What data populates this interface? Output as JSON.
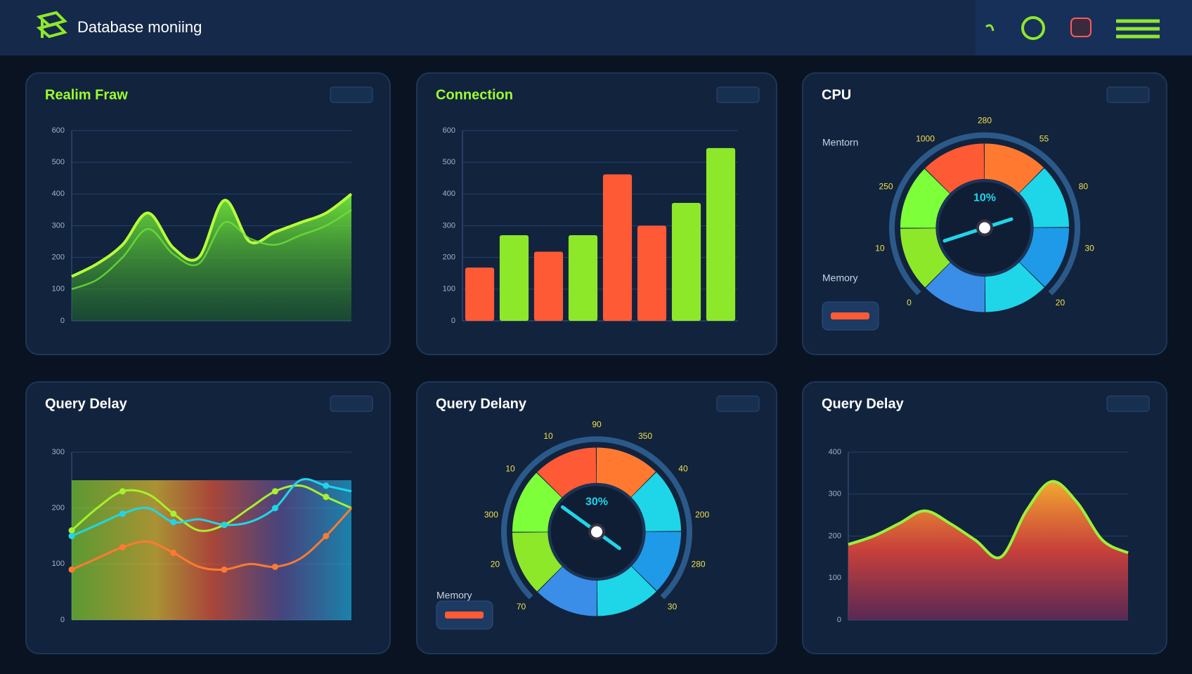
{
  "header": {
    "title": "Database moniing"
  },
  "chart_data": [
    {
      "type": "area",
      "title": "Realim Fraw",
      "ylim": [
        0,
        600
      ],
      "yticks": [
        0,
        100,
        200,
        300,
        400,
        500,
        600
      ],
      "grid": true,
      "series": [
        {
          "color": "#b6ff3a",
          "values": [
            140,
            180,
            240,
            340,
            230,
            200,
            380,
            250,
            280,
            310,
            340,
            400
          ]
        },
        {
          "color": "#6fe23a",
          "values": [
            100,
            130,
            200,
            290,
            210,
            180,
            310,
            260,
            240,
            270,
            300,
            350
          ]
        }
      ]
    },
    {
      "type": "bar",
      "title": "Connection",
      "ylim": [
        0,
        600
      ],
      "yticks": [
        0,
        100,
        200,
        300,
        400,
        500,
        600
      ],
      "grid": true,
      "values": [
        168,
        270,
        218,
        270,
        462,
        300,
        372,
        545
      ],
      "colors": [
        "#ff5a36",
        "#8ee82a",
        "#ff5a36",
        "#8ee82a",
        "#ff5a36",
        "#ff5a36",
        "#8ee82a",
        "#8ee82a"
      ]
    },
    {
      "type": "gauge",
      "title": "CPU",
      "value": 10,
      "value_label": "10%",
      "dial_labels": [
        "0",
        "10",
        "250",
        "1000",
        "280",
        "55",
        "80",
        "30",
        "20"
      ],
      "annotations": [
        "Mentorn",
        "Memory"
      ]
    },
    {
      "type": "line",
      "title": "Query Delay",
      "ylim": [
        0,
        300
      ],
      "yticks": [
        0,
        100,
        200,
        300
      ],
      "grid": true,
      "series": [
        {
          "color": "#a6f02e",
          "values": [
            160,
            200,
            230,
            225,
            190,
            160,
            170,
            200,
            230,
            240,
            220,
            200
          ]
        },
        {
          "color": "#1fd6e8",
          "values": [
            150,
            170,
            190,
            200,
            175,
            180,
            170,
            175,
            200,
            250,
            240,
            230
          ]
        },
        {
          "color": "#ff7a30",
          "values": [
            90,
            110,
            130,
            140,
            120,
            95,
            90,
            100,
            95,
            110,
            150,
            200
          ]
        }
      ]
    },
    {
      "type": "gauge",
      "title": "Query Delany",
      "value": 30,
      "value_label": "30%",
      "dial_labels": [
        "70",
        "20",
        "300",
        "10",
        "10",
        "90",
        "350",
        "40",
        "200",
        "280",
        "30"
      ],
      "annotations": [
        "Memory"
      ]
    },
    {
      "type": "area",
      "title": "Query Delay",
      "ylim": [
        0,
        400
      ],
      "yticks": [
        0,
        100,
        200,
        300,
        400
      ],
      "grid": true,
      "series": [
        {
          "color": "#9bf03a",
          "values": [
            180,
            200,
            230,
            260,
            230,
            190,
            150,
            260,
            330,
            280,
            190,
            160
          ]
        }
      ]
    }
  ]
}
